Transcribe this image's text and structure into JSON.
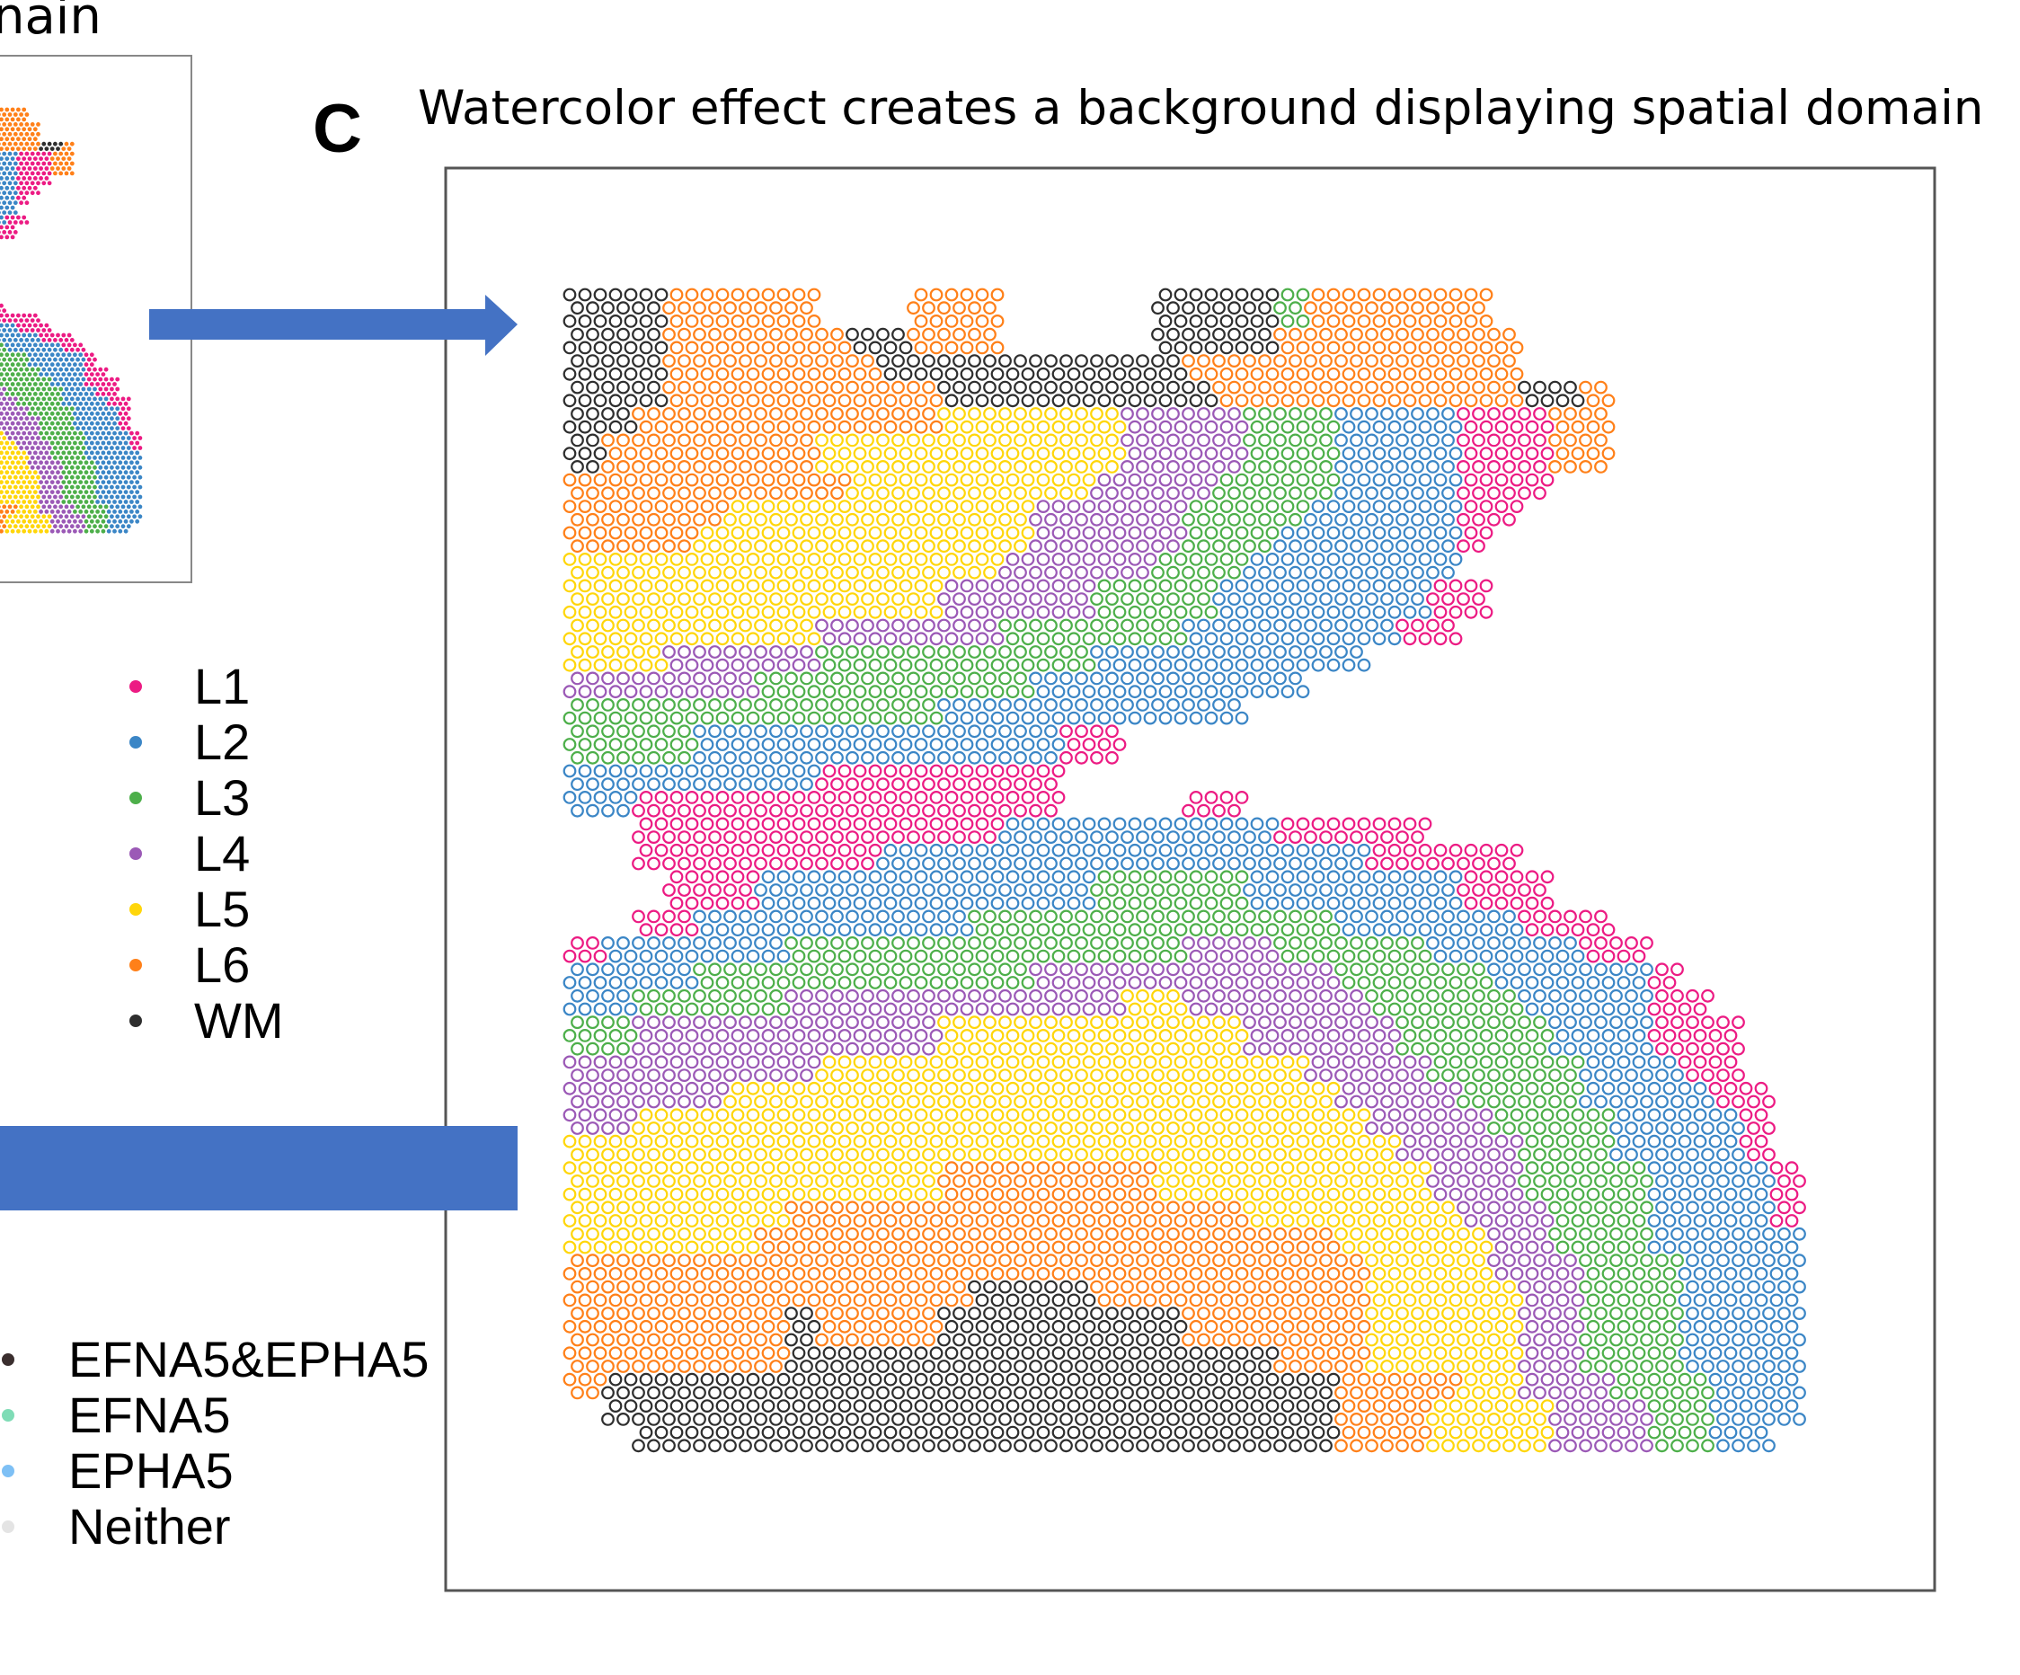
{
  "panel_b": {
    "title_fragment": "nain"
  },
  "panel_c": {
    "letter": "C",
    "title": "Watercolor effect creates a background displaying spatial domain"
  },
  "colors": {
    "arrow": "#4472c4",
    "frame": "#555555"
  },
  "layer_legend": [
    {
      "code": "1",
      "label": "L1",
      "color": "#ec1b83"
    },
    {
      "code": "2",
      "label": "L2",
      "color": "#3b86c6"
    },
    {
      "code": "3",
      "label": "L3",
      "color": "#4daf4a"
    },
    {
      "code": "4",
      "label": "L4",
      "color": "#9b59b6"
    },
    {
      "code": "5",
      "label": "L5",
      "color": "#ffd60a"
    },
    {
      "code": "6",
      "label": "L6",
      "color": "#ff8019"
    },
    {
      "code": "W",
      "label": "WM",
      "color": "#2e2e2e"
    }
  ],
  "gene_legend": [
    {
      "label": "EFNA5&EPHA5",
      "color": "#3a2e2e"
    },
    {
      "label": "EFNA5",
      "color": "#7fdcb6"
    },
    {
      "label": "EPHA5",
      "color": "#7ec0f5"
    },
    {
      "label": "Neither",
      "color": "#e4e4e4"
    }
  ],
  "chart_data": {
    "type": "scatter",
    "title": "Watercolor effect creates a background displaying spatial domain",
    "description_units": "spatial domain map on a 40x40 coarse grid; each row lists runs [layer_code, start_col, end_col]",
    "grid_cols": 40,
    "grid_rows": 40,
    "legend": [
      "L1",
      "L2",
      "L3",
      "L4",
      "L5",
      "L6",
      "WM"
    ],
    "rows": [
      [
        [
          "W",
          0,
          2
        ],
        [
          "6",
          3,
          7
        ],
        [
          "6",
          11,
          13
        ],
        [
          "W",
          19,
          22
        ],
        [
          "3",
          23,
          23
        ],
        [
          "6",
          24,
          29
        ]
      ],
      [
        [
          "W",
          0,
          2
        ],
        [
          "6",
          3,
          8
        ],
        [
          "W",
          9,
          10
        ],
        [
          "6",
          11,
          13
        ],
        [
          "W",
          19,
          22
        ],
        [
          "6",
          23,
          30
        ]
      ],
      [
        [
          "W",
          0,
          2
        ],
        [
          "6",
          3,
          9
        ],
        [
          "W",
          10,
          19
        ],
        [
          "6",
          20,
          30
        ]
      ],
      [
        [
          "W",
          0,
          2
        ],
        [
          "6",
          3,
          11
        ],
        [
          "W",
          12,
          20
        ],
        [
          "6",
          21,
          30
        ],
        [
          "W",
          31,
          32
        ],
        [
          "6",
          33,
          33
        ]
      ],
      [
        [
          "W",
          0,
          1
        ],
        [
          "6",
          2,
          11
        ],
        [
          "5",
          12,
          17
        ],
        [
          "4",
          18,
          21
        ],
        [
          "3",
          22,
          24
        ],
        [
          "2",
          25,
          28
        ],
        [
          "1",
          29,
          31
        ],
        [
          "6",
          32,
          33
        ]
      ],
      [
        [
          "W",
          0,
          0
        ],
        [
          "6",
          1,
          7
        ],
        [
          "5",
          8,
          17
        ],
        [
          "4",
          18,
          21
        ],
        [
          "3",
          22,
          24
        ],
        [
          "2",
          25,
          28
        ],
        [
          "1",
          29,
          31
        ],
        [
          "6",
          32,
          33
        ]
      ],
      [
        [
          "6",
          0,
          8
        ],
        [
          "5",
          9,
          16
        ],
        [
          "4",
          17,
          20
        ],
        [
          "3",
          21,
          24
        ],
        [
          "2",
          25,
          28
        ],
        [
          "1",
          29,
          31
        ]
      ],
      [
        [
          "6",
          0,
          4
        ],
        [
          "5",
          5,
          14
        ],
        [
          "4",
          15,
          19
        ],
        [
          "3",
          20,
          23
        ],
        [
          "2",
          24,
          28
        ],
        [
          "1",
          29,
          30
        ]
      ],
      [
        [
          "6",
          0,
          3
        ],
        [
          "5",
          4,
          14
        ],
        [
          "4",
          15,
          19
        ],
        [
          "3",
          20,
          22
        ],
        [
          "2",
          23,
          28
        ],
        [
          "1",
          29,
          29
        ]
      ],
      [
        [
          "5",
          0,
          13
        ],
        [
          "4",
          14,
          18
        ],
        [
          "3",
          19,
          21
        ],
        [
          "2",
          22,
          28
        ]
      ],
      [
        [
          "5",
          0,
          11
        ],
        [
          "4",
          12,
          16
        ],
        [
          "3",
          17,
          20
        ],
        [
          "2",
          21,
          27
        ],
        [
          "1",
          28,
          29
        ]
      ],
      [
        [
          "5",
          0,
          7
        ],
        [
          "4",
          8,
          13
        ],
        [
          "3",
          14,
          19
        ],
        [
          "2",
          20,
          26
        ],
        [
          "1",
          27,
          28
        ]
      ],
      [
        [
          "5",
          0,
          2
        ],
        [
          "4",
          3,
          7
        ],
        [
          "3",
          8,
          16
        ],
        [
          "2",
          17,
          25
        ]
      ],
      [
        [
          "4",
          0,
          5
        ],
        [
          "3",
          6,
          14
        ],
        [
          "2",
          15,
          23
        ]
      ],
      [
        [
          "3",
          0,
          11
        ],
        [
          "2",
          12,
          21
        ]
      ],
      [
        [
          "3",
          0,
          3
        ],
        [
          "2",
          4,
          15
        ],
        [
          "1",
          16,
          17
        ]
      ],
      [
        [
          "2",
          0,
          7
        ],
        [
          "1",
          8,
          15
        ]
      ],
      [
        [
          "2",
          0,
          1
        ],
        [
          "1",
          2,
          15
        ],
        [
          "1",
          20,
          21
        ]
      ],
      [
        [
          "1",
          2,
          13
        ],
        [
          "2",
          14,
          22
        ],
        [
          "1",
          23,
          27
        ]
      ],
      [
        [
          "1",
          2,
          9
        ],
        [
          "2",
          10,
          25
        ],
        [
          "1",
          26,
          30
        ]
      ],
      [
        [
          "1",
          3,
          5
        ],
        [
          "2",
          6,
          16
        ],
        [
          "3",
          17,
          21
        ],
        [
          "2",
          22,
          28
        ],
        [
          "1",
          29,
          31
        ]
      ],
      [
        [
          "1",
          2,
          3
        ],
        [
          "2",
          4,
          12
        ],
        [
          "3",
          13,
          24
        ],
        [
          "2",
          25,
          30
        ],
        [
          "1",
          31,
          33
        ]
      ],
      [
        [
          "1",
          0,
          0
        ],
        [
          "2",
          1,
          6
        ],
        [
          "3",
          7,
          19
        ],
        [
          "4",
          20,
          22
        ],
        [
          "3",
          23,
          27
        ],
        [
          "2",
          28,
          32
        ],
        [
          "1",
          33,
          34
        ]
      ],
      [
        [
          "2",
          0,
          3
        ],
        [
          "3",
          4,
          14
        ],
        [
          "4",
          15,
          24
        ],
        [
          "3",
          25,
          29
        ],
        [
          "2",
          30,
          34
        ],
        [
          "1",
          35,
          35
        ]
      ],
      [
        [
          "2",
          0,
          1
        ],
        [
          "3",
          2,
          6
        ],
        [
          "4",
          7,
          17
        ],
        [
          "5",
          18,
          19
        ],
        [
          "4",
          20,
          25
        ],
        [
          "3",
          26,
          30
        ],
        [
          "2",
          31,
          34
        ],
        [
          "1",
          35,
          36
        ]
      ],
      [
        [
          "3",
          0,
          1
        ],
        [
          "4",
          2,
          11
        ],
        [
          "5",
          12,
          21
        ],
        [
          "4",
          22,
          26
        ],
        [
          "3",
          27,
          31
        ],
        [
          "2",
          32,
          34
        ],
        [
          "1",
          35,
          37
        ]
      ],
      [
        [
          "4",
          0,
          7
        ],
        [
          "5",
          8,
          23
        ],
        [
          "4",
          24,
          27
        ],
        [
          "3",
          28,
          32
        ],
        [
          "2",
          33,
          35
        ],
        [
          "1",
          36,
          37
        ]
      ],
      [
        [
          "4",
          0,
          4
        ],
        [
          "5",
          5,
          24
        ],
        [
          "4",
          25,
          28
        ],
        [
          "3",
          29,
          32
        ],
        [
          "2",
          33,
          36
        ],
        [
          "1",
          37,
          38
        ]
      ],
      [
        [
          "4",
          0,
          1
        ],
        [
          "5",
          2,
          25
        ],
        [
          "4",
          26,
          29
        ],
        [
          "3",
          30,
          33
        ],
        [
          "2",
          34,
          37
        ],
        [
          "1",
          38,
          38
        ]
      ],
      [
        [
          "5",
          0,
          26
        ],
        [
          "4",
          27,
          30
        ],
        [
          "3",
          31,
          33
        ],
        [
          "2",
          34,
          37
        ],
        [
          "1",
          38,
          38
        ]
      ],
      [
        [
          "5",
          0,
          11
        ],
        [
          "6",
          12,
          18
        ],
        [
          "5",
          19,
          27
        ],
        [
          "4",
          28,
          30
        ],
        [
          "3",
          31,
          34
        ],
        [
          "2",
          35,
          38
        ],
        [
          "1",
          39,
          39
        ]
      ],
      [
        [
          "5",
          0,
          6
        ],
        [
          "6",
          7,
          21
        ],
        [
          "5",
          22,
          28
        ],
        [
          "4",
          29,
          31
        ],
        [
          "3",
          32,
          34
        ],
        [
          "2",
          35,
          38
        ],
        [
          "1",
          39,
          39
        ]
      ],
      [
        [
          "5",
          0,
          5
        ],
        [
          "6",
          6,
          24
        ],
        [
          "5",
          25,
          29
        ],
        [
          "4",
          30,
          31
        ],
        [
          "3",
          32,
          34
        ],
        [
          "2",
          35,
          39
        ]
      ],
      [
        [
          "6",
          0,
          25
        ],
        [
          "5",
          26,
          29
        ],
        [
          "4",
          30,
          32
        ],
        [
          "3",
          33,
          35
        ],
        [
          "2",
          36,
          39
        ]
      ],
      [
        [
          "6",
          0,
          12
        ],
        [
          "W",
          13,
          16
        ],
        [
          "6",
          17,
          25
        ],
        [
          "5",
          26,
          30
        ],
        [
          "4",
          31,
          32
        ],
        [
          "3",
          33,
          35
        ],
        [
          "2",
          36,
          39
        ]
      ],
      [
        [
          "6",
          0,
          6
        ],
        [
          "W",
          7,
          7
        ],
        [
          "6",
          8,
          11
        ],
        [
          "W",
          12,
          19
        ],
        [
          "6",
          20,
          25
        ],
        [
          "5",
          26,
          30
        ],
        [
          "4",
          31,
          32
        ],
        [
          "3",
          33,
          35
        ],
        [
          "2",
          36,
          39
        ]
      ],
      [
        [
          "6",
          0,
          6
        ],
        [
          "W",
          7,
          22
        ],
        [
          "6",
          23,
          25
        ],
        [
          "5",
          26,
          30
        ],
        [
          "4",
          31,
          32
        ],
        [
          "3",
          33,
          35
        ],
        [
          "2",
          36,
          39
        ]
      ],
      [
        [
          "6",
          0,
          0
        ],
        [
          "W",
          1,
          24
        ],
        [
          "6",
          25,
          28
        ],
        [
          "5",
          29,
          30
        ],
        [
          "4",
          31,
          33
        ],
        [
          "3",
          34,
          36
        ],
        [
          "2",
          37,
          39
        ]
      ],
      [
        [
          "W",
          1,
          24
        ],
        [
          "6",
          25,
          27
        ],
        [
          "5",
          28,
          31
        ],
        [
          "4",
          32,
          34
        ],
        [
          "3",
          35,
          36
        ],
        [
          "2",
          37,
          39
        ]
      ],
      [
        [
          "W",
          2,
          24
        ],
        [
          "6",
          25,
          27
        ],
        [
          "5",
          28,
          31
        ],
        [
          "4",
          32,
          34
        ],
        [
          "3",
          35,
          36
        ],
        [
          "2",
          37,
          38
        ]
      ]
    ]
  }
}
